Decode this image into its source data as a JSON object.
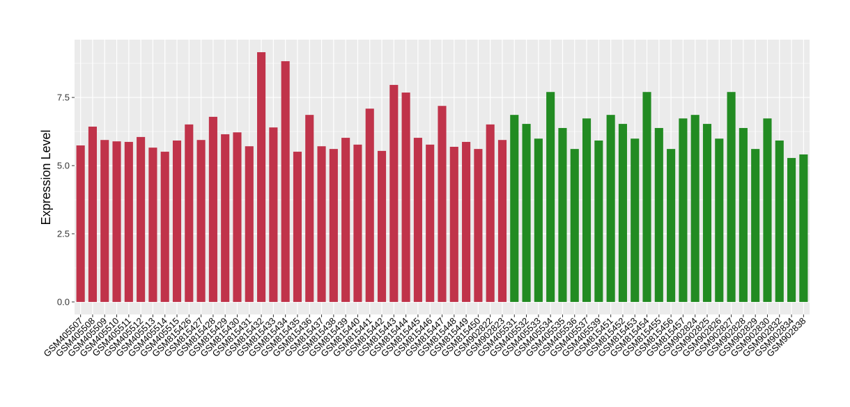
{
  "chart_data": {
    "type": "bar",
    "y_label": "Expression Level",
    "categories": [
      "GSM405507",
      "GSM405508",
      "GSM405509",
      "GSM405510",
      "GSM405511",
      "GSM405512",
      "GSM405513",
      "GSM405514",
      "GSM405515",
      "GSM815426",
      "GSM815427",
      "GSM815428",
      "GSM815429",
      "GSM815430",
      "GSM815431",
      "GSM815432",
      "GSM815433",
      "GSM815434",
      "GSM815435",
      "GSM815436",
      "GSM815437",
      "GSM815438",
      "GSM815439",
      "GSM815440",
      "GSM815441",
      "GSM815442",
      "GSM815443",
      "GSM815444",
      "GSM815445",
      "GSM815446",
      "GSM815447",
      "GSM815448",
      "GSM815449",
      "GSM815450",
      "GSM902822",
      "GSM902823",
      "GSM405531",
      "GSM405532",
      "GSM405533",
      "GSM405534",
      "GSM405535",
      "GSM405536",
      "GSM405537",
      "GSM405539",
      "GSM815451",
      "GSM815452",
      "GSM815453",
      "GSM815454",
      "GSM815455",
      "GSM815456",
      "GSM815457",
      "GSM902824",
      "GSM902825",
      "GSM902826",
      "GSM902827",
      "GSM902828",
      "GSM902829",
      "GSM902830",
      "GSM902832",
      "GSM902834",
      "GSM902838"
    ],
    "values": [
      5.74,
      6.43,
      5.94,
      5.89,
      5.87,
      6.05,
      5.66,
      5.51,
      5.92,
      6.51,
      5.94,
      6.79,
      6.15,
      6.22,
      5.71,
      9.16,
      6.4,
      8.83,
      5.51,
      6.86,
      5.71,
      5.61,
      6.02,
      5.77,
      7.09,
      5.54,
      7.96,
      7.68,
      6.02,
      5.77,
      7.19,
      5.69,
      5.87,
      5.61,
      6.51,
      5.94,
      6.86,
      6.53,
      5.99,
      7.7,
      6.38,
      5.61,
      6.73,
      5.92,
      6.86,
      6.53,
      5.99,
      7.7,
      6.38,
      5.61,
      6.73,
      6.86,
      6.53,
      5.99,
      7.7,
      6.38,
      5.61,
      6.73,
      5.92,
      5.28,
      5.41
    ],
    "colors": [
      "#c0334a",
      "#c0334a",
      "#c0334a",
      "#c0334a",
      "#c0334a",
      "#c0334a",
      "#c0334a",
      "#c0334a",
      "#c0334a",
      "#c0334a",
      "#c0334a",
      "#c0334a",
      "#c0334a",
      "#c0334a",
      "#c0334a",
      "#c0334a",
      "#c0334a",
      "#c0334a",
      "#c0334a",
      "#c0334a",
      "#c0334a",
      "#c0334a",
      "#c0334a",
      "#c0334a",
      "#c0334a",
      "#c0334a",
      "#c0334a",
      "#c0334a",
      "#c0334a",
      "#c0334a",
      "#c0334a",
      "#c0334a",
      "#c0334a",
      "#c0334a",
      "#c0334a",
      "#c0334a",
      "#228b22",
      "#228b22",
      "#228b22",
      "#228b22",
      "#228b22",
      "#228b22",
      "#228b22",
      "#228b22",
      "#228b22",
      "#228b22",
      "#228b22",
      "#228b22",
      "#228b22",
      "#228b22",
      "#228b22",
      "#228b22",
      "#228b22",
      "#228b22",
      "#228b22",
      "#228b22",
      "#228b22",
      "#228b22",
      "#228b22",
      "#228b22",
      "#228b22"
    ],
    "ylim": [
      -0.46,
      9.62
    ],
    "yticks": [
      {
        "value": 0,
        "label": "0.0"
      },
      {
        "value": 2.5,
        "label": "2.5"
      },
      {
        "value": 5,
        "label": "5.0"
      },
      {
        "value": 7.5,
        "label": "7.5"
      }
    ],
    "minor_yticks": [
      1.25,
      3.75,
      6.25,
      8.75
    ],
    "grid": true
  }
}
